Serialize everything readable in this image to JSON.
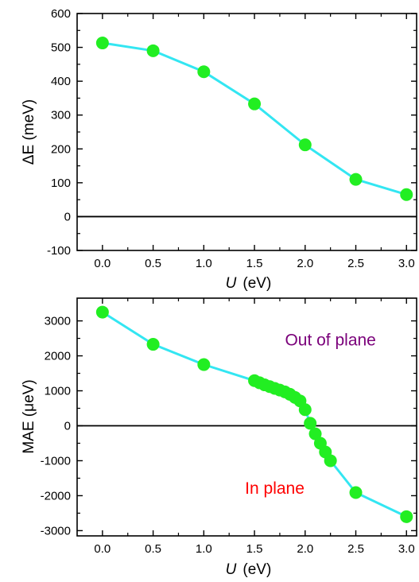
{
  "chart_data": [
    {
      "type": "line",
      "ylabel": "ΔE (meV)",
      "xlabel_italic": "U",
      "xlabel_unit": "(eV)",
      "xlim": [
        -0.25,
        3.1
      ],
      "ylim": [
        -100,
        600
      ],
      "xticks": [
        "0.0",
        "0.5",
        "1.0",
        "1.5",
        "2.0",
        "2.5",
        "3.0"
      ],
      "yticks": [
        "-100",
        "0",
        "100",
        "200",
        "300",
        "400",
        "500",
        "600"
      ],
      "zero_line": true,
      "line_color": "#33e6f2",
      "marker_color": "#22ee22",
      "series": [
        {
          "x": [
            0.0,
            0.5,
            1.0,
            1.5,
            2.0,
            2.5,
            3.0
          ],
          "y": [
            513,
            490,
            428,
            333,
            212,
            110,
            65
          ]
        }
      ],
      "annotations": []
    },
    {
      "type": "line",
      "ylabel": "MAE (μeV)",
      "xlabel_italic": "U",
      "xlabel_unit": "(eV)",
      "xlim": [
        -0.25,
        3.1
      ],
      "ylim": [
        -3150,
        3650
      ],
      "xticks": [
        "0.0",
        "0.5",
        "1.0",
        "1.5",
        "2.0",
        "2.5",
        "3.0"
      ],
      "yticks": [
        "-3000",
        "-2000",
        "-1000",
        "0",
        "1000",
        "2000",
        "3000"
      ],
      "zero_line": true,
      "line_color": "#33e6f2",
      "marker_color": "#22ee22",
      "series": [
        {
          "x": [
            0.0,
            0.5,
            1.0,
            1.5,
            1.55,
            1.6,
            1.65,
            1.7,
            1.75,
            1.8,
            1.85,
            1.9,
            1.95,
            2.0,
            2.05,
            2.1,
            2.15,
            2.2,
            2.25,
            2.5,
            3.0
          ],
          "y": [
            3250,
            2330,
            1750,
            1290,
            1230,
            1170,
            1120,
            1070,
            1020,
            970,
            900,
            810,
            710,
            460,
            70,
            -230,
            -500,
            -750,
            -1000,
            -1910,
            -2600
          ]
        }
      ],
      "annotations": [
        {
          "text": "Out of plane",
          "color": "#7a007a",
          "x": 2.25,
          "y": 2300
        },
        {
          "text": "In plane",
          "color": "#ff0000",
          "x": 1.7,
          "y": -1950
        }
      ]
    }
  ]
}
